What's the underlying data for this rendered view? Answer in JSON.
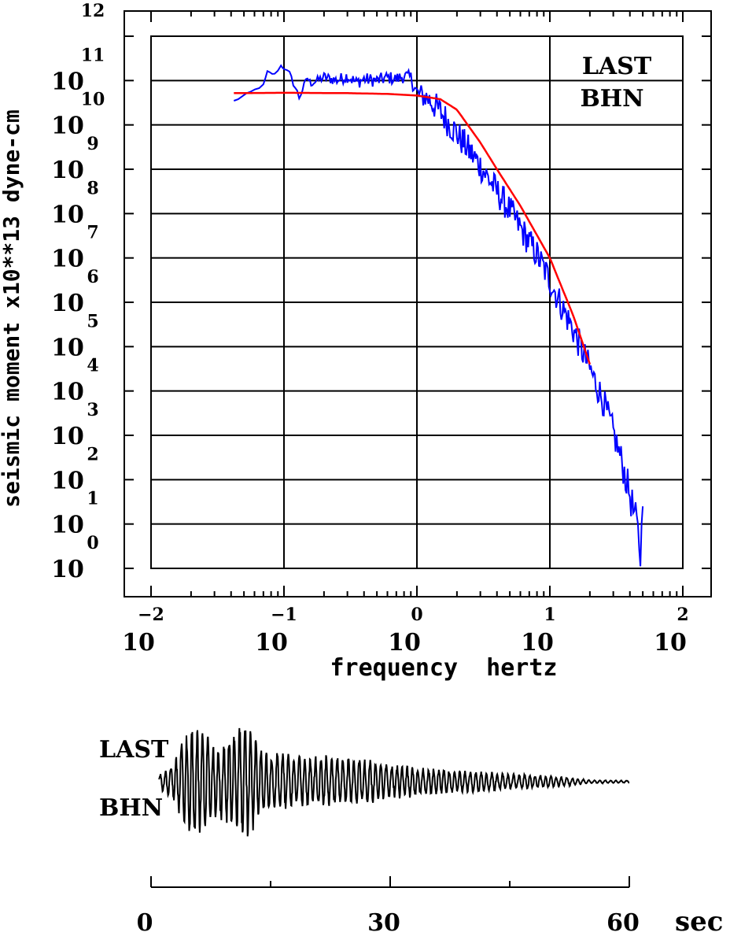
{
  "chart_data": [
    {
      "type": "line",
      "scale": {
        "x": "log",
        "y": "log"
      },
      "xlabel": "frequency  hertz",
      "ylabel": "seismic moment x10**13 dyne-cm",
      "xlim": [
        0.01,
        100
      ],
      "ylim": [
        1,
        1000000000000.0
      ],
      "grid": true,
      "x_ticks": [
        {
          "base": "10",
          "exp": "−2"
        },
        {
          "base": "10",
          "exp": "−1"
        },
        {
          "base": "10",
          "exp": "0"
        },
        {
          "base": "10",
          "exp": "1"
        },
        {
          "base": "10",
          "exp": "2"
        }
      ],
      "y_ticks": [
        {
          "base": "10",
          "exp": "0"
        },
        {
          "base": "10",
          "exp": "1"
        },
        {
          "base": "10",
          "exp": "2"
        },
        {
          "base": "10",
          "exp": "3"
        },
        {
          "base": "10",
          "exp": "4"
        },
        {
          "base": "10",
          "exp": "5"
        },
        {
          "base": "10",
          "exp": "6"
        },
        {
          "base": "10",
          "exp": "7"
        },
        {
          "base": "10",
          "exp": "8"
        },
        {
          "base": "10",
          "exp": "9"
        },
        {
          "base": "10",
          "exp": "10"
        },
        {
          "base": "10",
          "exp": "11"
        },
        {
          "base": "",
          "exp": "12"
        }
      ],
      "annotations": [
        "LAST",
        "BHN"
      ],
      "series": [
        {
          "color": "#0000ff",
          "style": "noisy-spectrum",
          "x": [
            0.042,
            0.07,
            0.075,
            0.085,
            0.095,
            0.1,
            0.11,
            0.13,
            0.15,
            0.16,
            0.2,
            0.25,
            0.3,
            0.35,
            0.4,
            0.5,
            0.6,
            0.7,
            0.8,
            0.9,
            1.0,
            1.2,
            1.5,
            2.0,
            3.0,
            4.0,
            5.0,
            6.0,
            8.0,
            10.0,
            12.0,
            15.0,
            20.0,
            25.0,
            30.0,
            35.0,
            40.0,
            45.0,
            48.0,
            50.0
          ],
          "y": [
            35000000000.0,
            80000000000.0,
            160000000000.0,
            140000000000.0,
            220000000000.0,
            190000000000.0,
            150000000000.0,
            45000000000.0,
            120000000000.0,
            90000000000.0,
            130000000000.0,
            110000000000.0,
            140000000000.0,
            100000000000.0,
            120000000000.0,
            110000000000.0,
            130000000000.0,
            120000000000.0,
            140000000000.0,
            130000000000.0,
            60000000000.0,
            50000000000.0,
            25000000000.0,
            8000000000.0,
            1500000000.0,
            400000000.0,
            150000000.0,
            60000000.0,
            15000000.0,
            4000000.0,
            1200000.0,
            300000.0,
            40000.0,
            8000.0,
            1500.0,
            300,
            60,
            12,
            3,
            25
          ],
          "noise_decades": [
            0.05,
            0.05,
            0.05,
            0.05,
            0.05,
            0.05,
            0.12,
            0.2,
            0.15,
            0.15,
            0.25,
            0.25,
            0.3,
            0.3,
            0.3,
            0.3,
            0.3,
            0.3,
            0.3,
            0.3,
            0.5,
            0.6,
            0.7,
            0.7,
            0.7,
            0.7,
            0.7,
            0.7,
            0.7,
            0.7,
            0.7,
            0.7,
            0.7,
            0.7,
            0.7,
            0.75,
            0.8,
            0.9,
            1.0,
            0.6
          ]
        },
        {
          "color": "#ff0000",
          "style": "smooth",
          "x": [
            0.042,
            0.1,
            0.3,
            0.6,
            1.0,
            1.5,
            2.0,
            3.0,
            4.0,
            6.0,
            10.0,
            15.0,
            20.0
          ],
          "y": [
            52000000000.0,
            53000000000.0,
            52000000000.0,
            50000000000.0,
            46000000000.0,
            38000000000.0,
            22000000000.0,
            4000000000.0,
            1000000000.0,
            150000000.0,
            10000000.0,
            500000.0,
            40000.0
          ]
        }
      ]
    },
    {
      "type": "line",
      "style": "seismogram",
      "xlabel": "sec",
      "xlim": [
        0,
        60
      ],
      "x_tick_labels": [
        "0",
        "30",
        "60"
      ],
      "annotations": [
        "LAST",
        "BHN"
      ],
      "series": [
        {
          "color": "#000000",
          "envelope_t": [
            0,
            1,
            3,
            4,
            5,
            6,
            8,
            10,
            12,
            14,
            16,
            18,
            20,
            22,
            24,
            26,
            28,
            30,
            35,
            40,
            45,
            50,
            55,
            60
          ],
          "envelope_a": [
            0.05,
            0.12,
            0.35,
            0.75,
            0.9,
            0.95,
            0.65,
            0.8,
            1.0,
            0.5,
            0.5,
            0.45,
            0.42,
            0.45,
            0.42,
            0.4,
            0.35,
            0.3,
            0.22,
            0.18,
            0.14,
            0.1,
            0.03,
            0.02
          ]
        }
      ]
    }
  ]
}
